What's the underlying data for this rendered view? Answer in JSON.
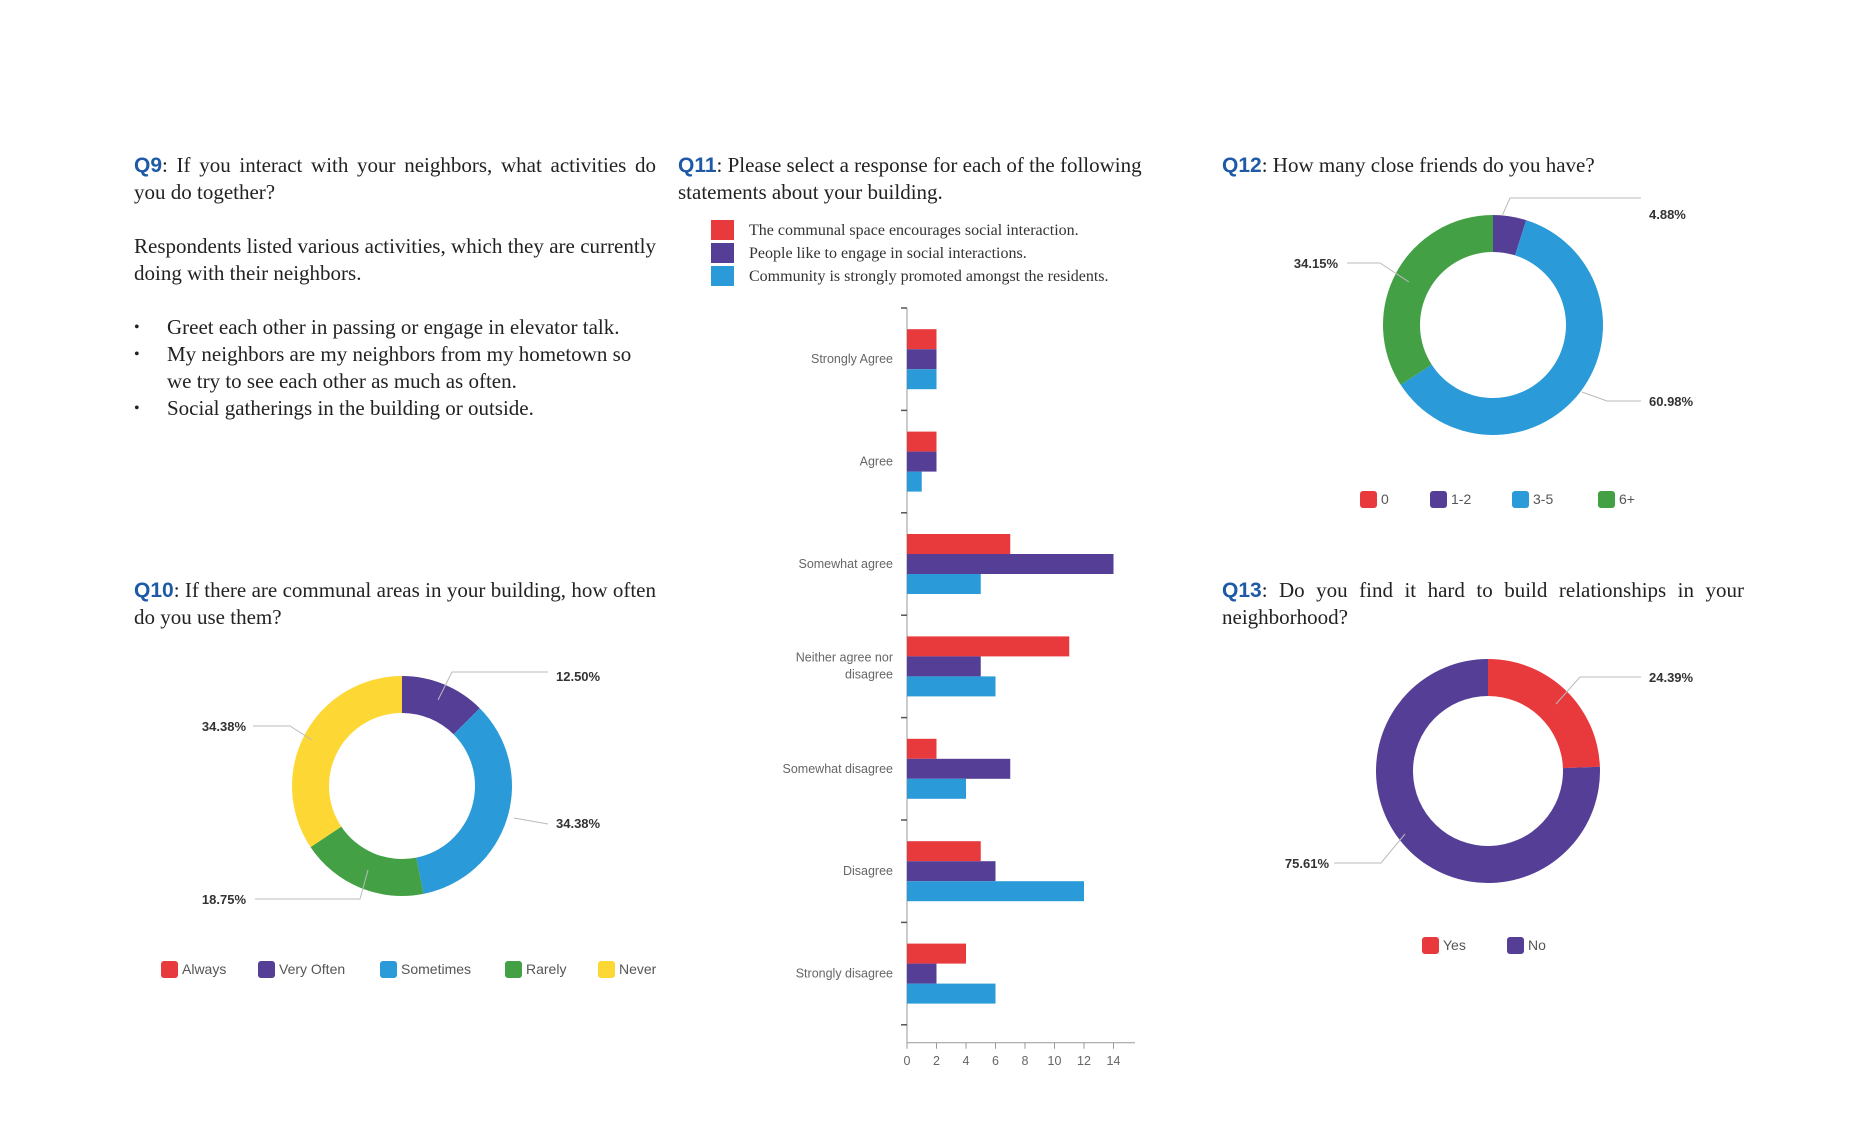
{
  "q9": {
    "number": "Q9",
    "question": ": If you interact with your neighbors, what activities do you do together?",
    "intro": "Respondents listed various activities, which they are currently doing with their neighbors.",
    "items": [
      "Greet each other in passing or engage in elevator talk.",
      "My neighbors are my neighbors from my hometown so we try to see each other as much as often.",
      "Social gatherings in the building or outside."
    ]
  },
  "q10": {
    "number": "Q10",
    "question": ": If there are communal areas in your building, how often do you use them?"
  },
  "q11": {
    "number": "Q11",
    "question": ": Please select a response for each of the following statements about your building."
  },
  "q12": {
    "number": "Q12",
    "question": ": How many close friends do you have?"
  },
  "q13": {
    "number": "Q13",
    "question": ": Do you find it hard to build relationships in your neighborhood?"
  },
  "colors": {
    "red": "#e8393c",
    "purple": "#553f96",
    "blue": "#2a9ad8",
    "green": "#44a045",
    "yellow": "#fdd835"
  },
  "chart_data": [
    {
      "id": "q10",
      "type": "pie",
      "donut": true,
      "labels": [
        "Always",
        "Very Often",
        "Sometimes",
        "Rarely",
        "Never"
      ],
      "values": [
        0,
        12.5,
        34.38,
        18.75,
        34.38
      ],
      "value_labels": [
        "",
        "12.50%",
        "34.38%",
        "18.75%",
        "34.38%"
      ],
      "colors": [
        "#e8393c",
        "#553f96",
        "#2a9ad8",
        "#44a045",
        "#fdd835"
      ],
      "legend_position": "bottom"
    },
    {
      "id": "q11",
      "type": "bar",
      "orientation": "horizontal",
      "categories": [
        "Strongly Agree",
        "Agree",
        "Somewhat agree",
        "Neither agree nor disagree",
        "Somewhat disagree",
        "Disagree",
        "Strongly disagree"
      ],
      "series": [
        {
          "name": "The communal space encourages social interaction.",
          "color": "#e8393c",
          "values": [
            2,
            2,
            7,
            11,
            2,
            5,
            4
          ]
        },
        {
          "name": "People like to engage in social interactions.",
          "color": "#553f96",
          "values": [
            2,
            2,
            14,
            5,
            7,
            6,
            2
          ]
        },
        {
          "name": "Community is strongly promoted amongst the residents.",
          "color": "#2a9ad8",
          "values": [
            2,
            1,
            5,
            6,
            4,
            12,
            6
          ]
        }
      ],
      "xlim": [
        0,
        15
      ],
      "xticks": [
        "0",
        "2",
        "4",
        "6",
        "8",
        "10",
        "12",
        "14"
      ],
      "legend_position": "top"
    },
    {
      "id": "q12",
      "type": "pie",
      "donut": true,
      "labels": [
        "0",
        "1-2",
        "3-5",
        "6+"
      ],
      "values": [
        0,
        4.88,
        60.98,
        34.15
      ],
      "value_labels": [
        "",
        "4.88%",
        "60.98%",
        "34.15%"
      ],
      "colors": [
        "#e8393c",
        "#553f96",
        "#2a9ad8",
        "#44a045"
      ],
      "legend_position": "bottom"
    },
    {
      "id": "q13",
      "type": "pie",
      "donut": true,
      "labels": [
        "Yes",
        "No"
      ],
      "values": [
        24.39,
        75.61
      ],
      "value_labels": [
        "24.39%",
        "75.61%"
      ],
      "colors": [
        "#e8393c",
        "#553f96"
      ],
      "legend_position": "bottom"
    }
  ]
}
